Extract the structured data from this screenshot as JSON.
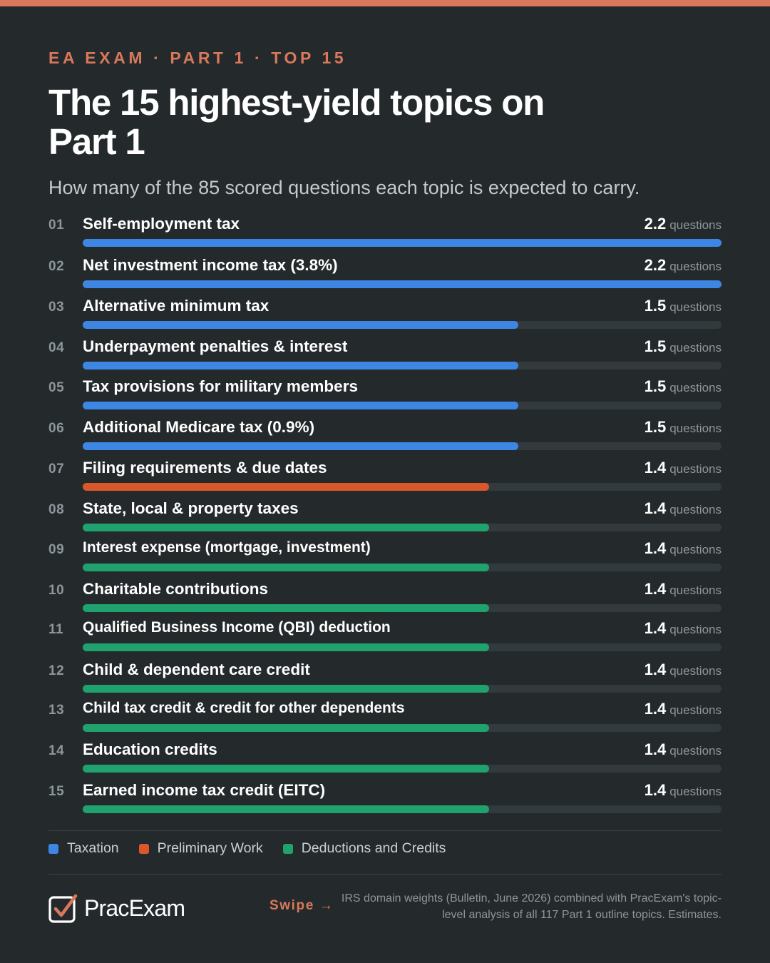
{
  "header": {
    "eyebrow": "EA EXAM · PART 1 · TOP 15",
    "title": "The 15 highest-yield topics on Part 1",
    "subtitle": "How many of the 85 scored questions each topic is expected to carry."
  },
  "colors": {
    "Taxation": "#3d86e3",
    "Preliminary Work": "#d8582c",
    "Deductions and Credits": "#1fa26e",
    "accent": "#d9785a",
    "background": "#242a2c",
    "track": "#323a3e"
  },
  "chart_data": {
    "type": "bar",
    "orientation": "horizontal",
    "title": "The 15 highest-yield topics on Part 1",
    "value_unit": "questions",
    "xlim": [
      0,
      2.2
    ],
    "items": [
      {
        "rank": "01",
        "label": "Self-employment tax",
        "value": 2.2,
        "display": "2.2",
        "category": "Taxation"
      },
      {
        "rank": "02",
        "label": "Net investment income tax (3.8%)",
        "value": 2.2,
        "display": "2.2",
        "category": "Taxation"
      },
      {
        "rank": "03",
        "label": "Alternative minimum tax",
        "value": 1.5,
        "display": "1.5",
        "category": "Taxation"
      },
      {
        "rank": "04",
        "label": "Underpayment penalties & interest",
        "value": 1.5,
        "display": "1.5",
        "category": "Taxation"
      },
      {
        "rank": "05",
        "label": "Tax provisions for military members",
        "value": 1.5,
        "display": "1.5",
        "category": "Taxation"
      },
      {
        "rank": "06",
        "label": "Additional Medicare tax (0.9%)",
        "value": 1.5,
        "display": "1.5",
        "category": "Taxation"
      },
      {
        "rank": "07",
        "label": "Filing requirements & due dates",
        "value": 1.4,
        "display": "1.4",
        "category": "Preliminary Work"
      },
      {
        "rank": "08",
        "label": "State, local & property taxes",
        "value": 1.4,
        "display": "1.4",
        "category": "Deductions and Credits"
      },
      {
        "rank": "09",
        "label": "Interest expense (mortgage, investment)",
        "value": 1.4,
        "display": "1.4",
        "category": "Deductions and Credits"
      },
      {
        "rank": "10",
        "label": "Charitable contributions",
        "value": 1.4,
        "display": "1.4",
        "category": "Deductions and Credits"
      },
      {
        "rank": "11",
        "label": "Qualified Business Income (QBI) deduction",
        "value": 1.4,
        "display": "1.4",
        "category": "Deductions and Credits"
      },
      {
        "rank": "12",
        "label": "Child & dependent care credit",
        "value": 1.4,
        "display": "1.4",
        "category": "Deductions and Credits"
      },
      {
        "rank": "13",
        "label": "Child tax credit & credit for other dependents",
        "value": 1.4,
        "display": "1.4",
        "category": "Deductions and Credits"
      },
      {
        "rank": "14",
        "label": "Education credits",
        "value": 1.4,
        "display": "1.4",
        "category": "Deductions and Credits"
      },
      {
        "rank": "15",
        "label": "Earned income tax credit (EITC)",
        "value": 1.4,
        "display": "1.4",
        "category": "Deductions and Credits"
      }
    ],
    "legend": [
      "Taxation",
      "Preliminary Work",
      "Deductions and Credits"
    ]
  },
  "footer": {
    "brand": "PracExam",
    "logo_icon": "checkbox-check-icon",
    "swipe": "Swipe →",
    "source": "IRS domain weights (Bulletin, June 2026) combined with PracExam's topic-level analysis of all 117 Part 1 outline topics. Estimates."
  }
}
